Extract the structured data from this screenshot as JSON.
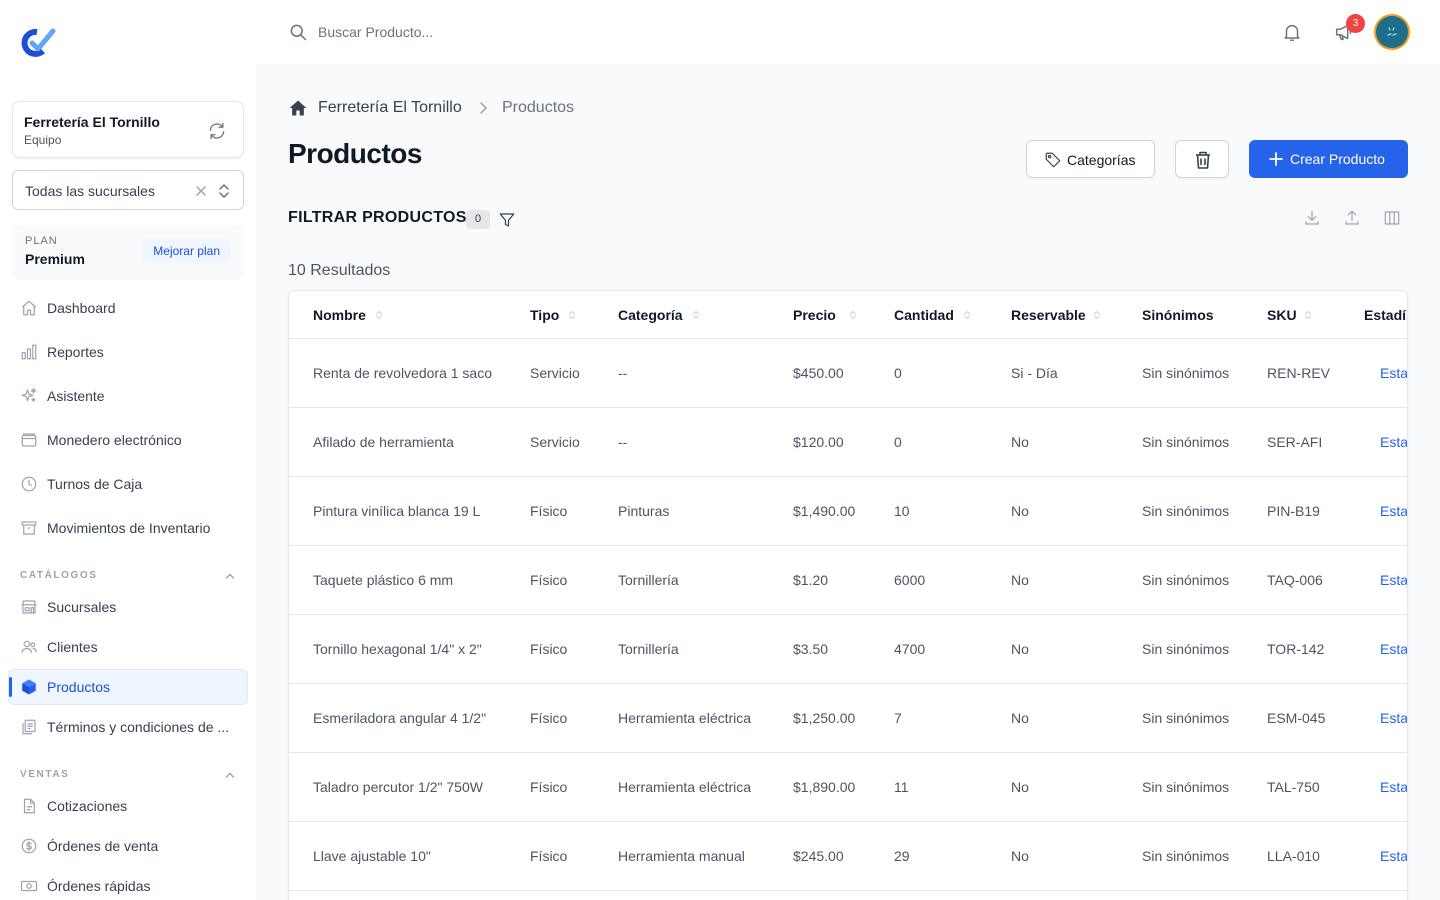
{
  "colors": {
    "accent": "#2563eb",
    "badge": "#ef4444"
  },
  "sidebar": {
    "team": {
      "name": "Ferretería El Tornillo",
      "subtitle": "Equipo"
    },
    "branch_select": {
      "value": "Todas las sucursales"
    },
    "plan": {
      "label": "PLAN",
      "name": "Premium",
      "upgrade": "Mejorar plan"
    },
    "main_items": [
      {
        "label": "Dashboard",
        "icon": "home-icon"
      },
      {
        "label": "Reportes",
        "icon": "chart-bar-icon"
      },
      {
        "label": "Asistente",
        "icon": "sparkles-icon"
      },
      {
        "label": "Monedero electrónico",
        "icon": "wallet-icon"
      },
      {
        "label": "Turnos de Caja",
        "icon": "clock-icon"
      },
      {
        "label": "Movimientos de Inventario",
        "icon": "archive-box-icon"
      }
    ],
    "catalogs": {
      "title": "CATÁLOGOS",
      "items": [
        {
          "label": "Sucursales",
          "icon": "storefront-icon"
        },
        {
          "label": "Clientes",
          "icon": "users-icon"
        },
        {
          "label": "Productos",
          "icon": "cube-icon",
          "active": true
        },
        {
          "label": "Términos y condiciones de ...",
          "icon": "document-duplicate-icon"
        }
      ]
    },
    "sales": {
      "title": "VENTAS",
      "items": [
        {
          "label": "Cotizaciones",
          "icon": "document-icon"
        },
        {
          "label": "Órdenes de venta",
          "icon": "dollar-circle-icon"
        },
        {
          "label": "Órdenes rápidas",
          "icon": "cash-icon"
        }
      ]
    }
  },
  "topbar": {
    "search_placeholder": "Buscar Producto...",
    "notifications_badge": "3"
  },
  "breadcrumb": {
    "home": "Ferretería El Tornillo",
    "current": "Productos"
  },
  "page": {
    "title": "Productos",
    "buttons": {
      "categories": "Categorías",
      "create": "Crear Producto"
    },
    "filter": {
      "title": "FILTRAR PRODUCTOS",
      "count": "0"
    },
    "results": "10 Resultados"
  },
  "table": {
    "columns": [
      "Nombre",
      "Tipo",
      "Categoría",
      "Precio",
      "Cantidad",
      "Reservable",
      "Sinónimos",
      "SKU",
      "Estadís"
    ],
    "rows": [
      [
        "Renta de revolvedora 1 saco",
        "Servicio",
        "--",
        "$450.00",
        "0",
        "Si - Día",
        "Sin sinónimos",
        "REN-REV",
        "Esta"
      ],
      [
        "Afilado de herramienta",
        "Servicio",
        "--",
        "$120.00",
        "0",
        "No",
        "Sin sinónimos",
        "SER-AFI",
        "Esta"
      ],
      [
        "Pintura vinílica blanca 19 L",
        "Físico",
        "Pinturas",
        "$1,490.00",
        "10",
        "No",
        "Sin sinónimos",
        "PIN-B19",
        "Esta"
      ],
      [
        "Taquete plástico 6 mm",
        "Físico",
        "Tornillería",
        "$1.20",
        "6000",
        "No",
        "Sin sinónimos",
        "TAQ-006",
        "Esta"
      ],
      [
        "Tornillo hexagonal 1/4\" x 2\"",
        "Físico",
        "Tornillería",
        "$3.50",
        "4700",
        "No",
        "Sin sinónimos",
        "TOR-142",
        "Esta"
      ],
      [
        "Esmeriladora angular 4 1/2\"",
        "Físico",
        "Herramienta eléctrica",
        "$1,250.00",
        "7",
        "No",
        "Sin sinónimos",
        "ESM-045",
        "Esta"
      ],
      [
        "Taladro percutor 1/2\" 750W",
        "Físico",
        "Herramienta eléctrica",
        "$1,890.00",
        "11",
        "No",
        "Sin sinónimos",
        "TAL-750",
        "Esta"
      ],
      [
        "Llave ajustable 10\"",
        "Físico",
        "Herramienta manual",
        "$245.00",
        "29",
        "No",
        "Sin sinónimos",
        "LLA-010",
        "Esta"
      ]
    ]
  }
}
